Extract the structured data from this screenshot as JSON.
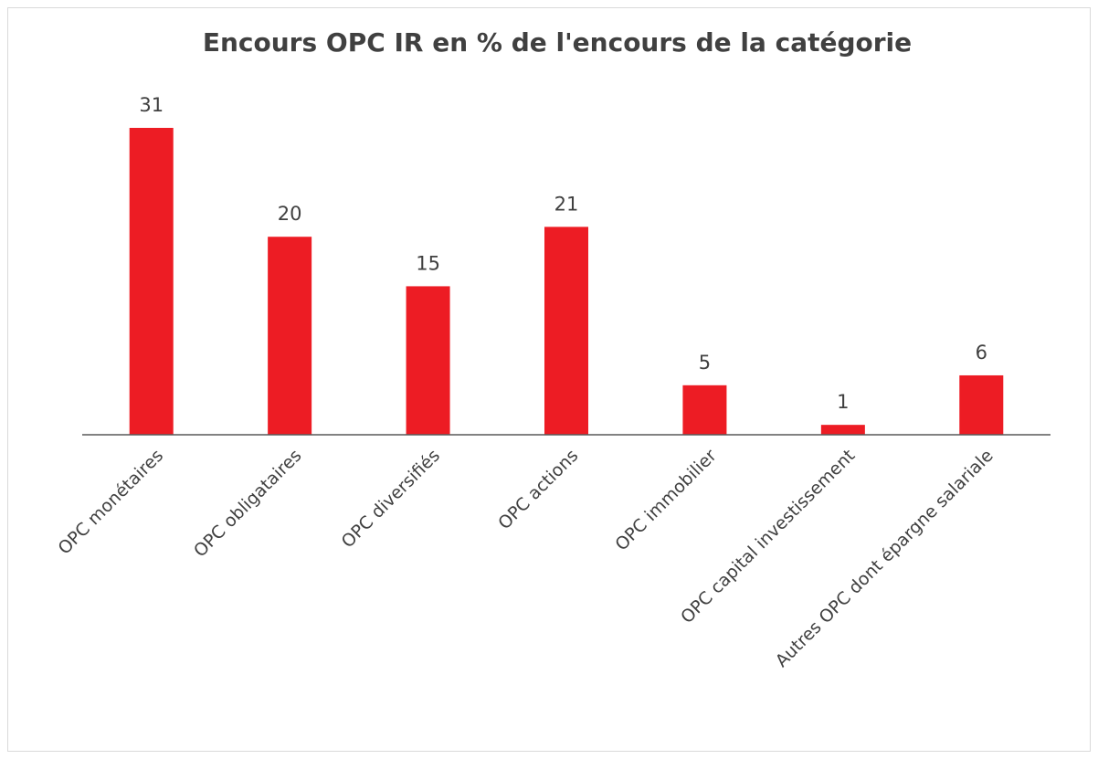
{
  "chart_data": {
    "type": "bar",
    "title": "Encours OPC IR en % de l'encours de la catégorie",
    "categories": [
      "OPC monétaires",
      "OPC obligataires",
      "OPC diversifiés",
      "OPC actions",
      "OPC immobilier",
      "OPC capital investissement",
      "Autres OPC dont épargne salariale"
    ],
    "values": [
      31,
      20,
      15,
      21,
      5,
      1,
      6
    ],
    "color": "#ed1c24"
  }
}
